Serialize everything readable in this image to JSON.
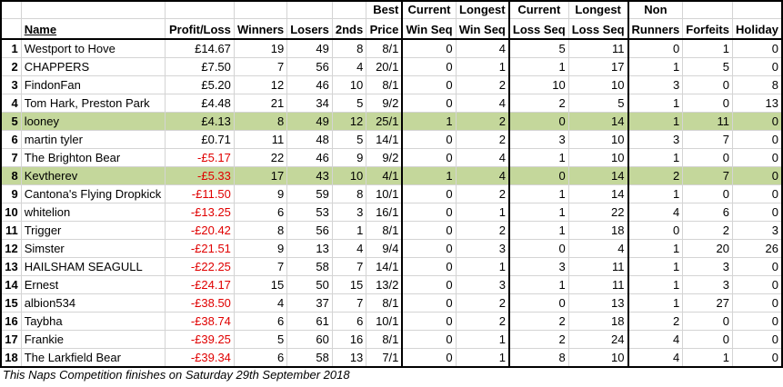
{
  "headers": {
    "row1": {
      "best": "Best",
      "cur_win": "Current",
      "long_win": "Longest",
      "cur_loss": "Current",
      "long_loss": "Longest",
      "non": "Non"
    },
    "row2": {
      "name": "Name",
      "pl": "Profit/Loss",
      "winners": "Winners",
      "losers": "Losers",
      "seconds": "2nds",
      "price": "Price",
      "cur_win": "Win Seq",
      "long_win": "Win Seq",
      "cur_loss": "Loss Seq",
      "long_loss": "Loss Seq",
      "non": "Runners",
      "forfeits": "Forfeits",
      "holiday": "Holiday"
    }
  },
  "rows": [
    {
      "pos": "1",
      "name": "Westport to Hove",
      "pl": "£14.67",
      "neg": false,
      "winners": "19",
      "losers": "49",
      "seconds": "8",
      "price": "8/1",
      "cur_win": "0",
      "long_win": "4",
      "cur_loss": "5",
      "long_loss": "11",
      "non": "0",
      "forfeits": "1",
      "holiday": "0",
      "hl": false
    },
    {
      "pos": "2",
      "name": "CHAPPERS",
      "pl": "£7.50",
      "neg": false,
      "winners": "7",
      "losers": "56",
      "seconds": "4",
      "price": "20/1",
      "cur_win": "0",
      "long_win": "1",
      "cur_loss": "1",
      "long_loss": "17",
      "non": "1",
      "forfeits": "5",
      "holiday": "0",
      "hl": false
    },
    {
      "pos": "3",
      "name": "FindonFan",
      "pl": "£5.20",
      "neg": false,
      "winners": "12",
      "losers": "46",
      "seconds": "10",
      "price": "8/1",
      "cur_win": "0",
      "long_win": "2",
      "cur_loss": "10",
      "long_loss": "10",
      "non": "3",
      "forfeits": "0",
      "holiday": "8",
      "hl": false
    },
    {
      "pos": "4",
      "name": "Tom Hark, Preston Park",
      "pl": "£4.48",
      "neg": false,
      "winners": "21",
      "losers": "34",
      "seconds": "5",
      "price": "9/2",
      "cur_win": "0",
      "long_win": "4",
      "cur_loss": "2",
      "long_loss": "5",
      "non": "1",
      "forfeits": "0",
      "holiday": "13",
      "hl": false
    },
    {
      "pos": "5",
      "name": "looney",
      "pl": "£4.13",
      "neg": false,
      "winners": "8",
      "losers": "49",
      "seconds": "12",
      "price": "25/1",
      "cur_win": "1",
      "long_win": "2",
      "cur_loss": "0",
      "long_loss": "14",
      "non": "1",
      "forfeits": "11",
      "holiday": "0",
      "hl": true
    },
    {
      "pos": "6",
      "name": "martin tyler",
      "pl": "£0.71",
      "neg": false,
      "winners": "11",
      "losers": "48",
      "seconds": "5",
      "price": "14/1",
      "cur_win": "0",
      "long_win": "2",
      "cur_loss": "3",
      "long_loss": "10",
      "non": "3",
      "forfeits": "7",
      "holiday": "0",
      "hl": false
    },
    {
      "pos": "7",
      "name": "The Brighton Bear",
      "pl": "-£5.17",
      "neg": true,
      "winners": "22",
      "losers": "46",
      "seconds": "9",
      "price": "9/2",
      "cur_win": "0",
      "long_win": "4",
      "cur_loss": "1",
      "long_loss": "10",
      "non": "1",
      "forfeits": "0",
      "holiday": "0",
      "hl": false
    },
    {
      "pos": "8",
      "name": "Kevtherev",
      "pl": "-£5.33",
      "neg": true,
      "winners": "17",
      "losers": "43",
      "seconds": "10",
      "price": "4/1",
      "cur_win": "1",
      "long_win": "4",
      "cur_loss": "0",
      "long_loss": "14",
      "non": "2",
      "forfeits": "7",
      "holiday": "0",
      "hl": true
    },
    {
      "pos": "9",
      "name": "Cantona's Flying Dropkick",
      "pl": "-£11.50",
      "neg": true,
      "winners": "9",
      "losers": "59",
      "seconds": "8",
      "price": "10/1",
      "cur_win": "0",
      "long_win": "2",
      "cur_loss": "1",
      "long_loss": "14",
      "non": "1",
      "forfeits": "0",
      "holiday": "0",
      "hl": false
    },
    {
      "pos": "10",
      "name": "whitelion",
      "pl": "-£13.25",
      "neg": true,
      "winners": "6",
      "losers": "53",
      "seconds": "3",
      "price": "16/1",
      "cur_win": "0",
      "long_win": "1",
      "cur_loss": "1",
      "long_loss": "22",
      "non": "4",
      "forfeits": "6",
      "holiday": "0",
      "hl": false
    },
    {
      "pos": "11",
      "name": "Trigger",
      "pl": "-£20.42",
      "neg": true,
      "winners": "8",
      "losers": "56",
      "seconds": "1",
      "price": "8/1",
      "cur_win": "0",
      "long_win": "2",
      "cur_loss": "1",
      "long_loss": "18",
      "non": "0",
      "forfeits": "2",
      "holiday": "3",
      "hl": false
    },
    {
      "pos": "12",
      "name": "Simster",
      "pl": "-£21.51",
      "neg": true,
      "winners": "9",
      "losers": "13",
      "seconds": "4",
      "price": "9/4",
      "cur_win": "0",
      "long_win": "3",
      "cur_loss": "0",
      "long_loss": "4",
      "non": "1",
      "forfeits": "20",
      "holiday": "26",
      "hl": false
    },
    {
      "pos": "13",
      "name": "HAILSHAM SEAGULL",
      "pl": "-£22.25",
      "neg": true,
      "winners": "7",
      "losers": "58",
      "seconds": "7",
      "price": "14/1",
      "cur_win": "0",
      "long_win": "1",
      "cur_loss": "3",
      "long_loss": "11",
      "non": "1",
      "forfeits": "3",
      "holiday": "0",
      "hl": false
    },
    {
      "pos": "14",
      "name": "Ernest",
      "pl": "-£24.17",
      "neg": true,
      "winners": "15",
      "losers": "50",
      "seconds": "15",
      "price": "13/2",
      "cur_win": "0",
      "long_win": "3",
      "cur_loss": "1",
      "long_loss": "11",
      "non": "1",
      "forfeits": "3",
      "holiday": "0",
      "hl": false
    },
    {
      "pos": "15",
      "name": "albion534",
      "pl": "-£38.50",
      "neg": true,
      "winners": "4",
      "losers": "37",
      "seconds": "7",
      "price": "8/1",
      "cur_win": "0",
      "long_win": "2",
      "cur_loss": "0",
      "long_loss": "13",
      "non": "1",
      "forfeits": "27",
      "holiday": "0",
      "hl": false
    },
    {
      "pos": "16",
      "name": "Taybha",
      "pl": "-£38.74",
      "neg": true,
      "winners": "6",
      "losers": "61",
      "seconds": "6",
      "price": "10/1",
      "cur_win": "0",
      "long_win": "2",
      "cur_loss": "2",
      "long_loss": "18",
      "non": "2",
      "forfeits": "0",
      "holiday": "0",
      "hl": false
    },
    {
      "pos": "17",
      "name": "Frankie",
      "pl": "-£39.25",
      "neg": true,
      "winners": "5",
      "losers": "60",
      "seconds": "16",
      "price": "8/1",
      "cur_win": "0",
      "long_win": "1",
      "cur_loss": "2",
      "long_loss": "24",
      "non": "4",
      "forfeits": "0",
      "holiday": "0",
      "hl": false
    },
    {
      "pos": "18",
      "name": "The Larkfield Bear",
      "pl": "-£39.34",
      "neg": true,
      "winners": "6",
      "losers": "58",
      "seconds": "13",
      "price": "7/1",
      "cur_win": "0",
      "long_win": "1",
      "cur_loss": "8",
      "long_loss": "10",
      "non": "4",
      "forfeits": "1",
      "holiday": "0",
      "hl": false
    }
  ],
  "footnote": "This Naps Competition finishes on Saturday 29th September 2018"
}
